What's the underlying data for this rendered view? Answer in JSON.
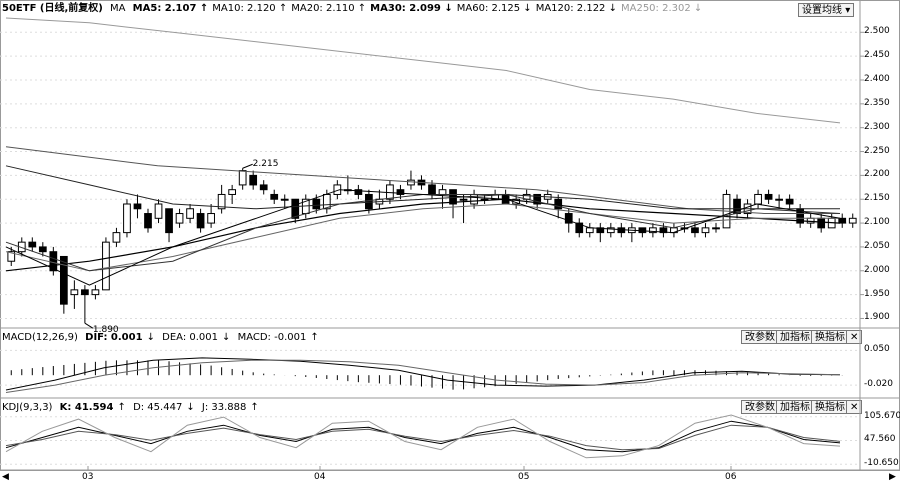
{
  "header": {
    "title": "50ETF (日线,前复权)",
    "ma_label": "MA",
    "ma": [
      {
        "name": "MA5",
        "value": "2.107",
        "arrow": "↑",
        "bold": true
      },
      {
        "name": "MA10",
        "value": "2.120",
        "arrow": "↑",
        "bold": false
      },
      {
        "name": "MA20",
        "value": "2.110",
        "arrow": "↑",
        "bold": false
      },
      {
        "name": "MA30",
        "value": "2.099",
        "arrow": "↓",
        "bold": true
      },
      {
        "name": "MA60",
        "value": "2.125",
        "arrow": "↓",
        "bold": false
      },
      {
        "name": "MA120",
        "value": "2.122",
        "arrow": "↓",
        "bold": false
      },
      {
        "name": "MA250",
        "value": "2.302",
        "arrow": "↓",
        "gray": true
      }
    ],
    "settings_button": "设置均线",
    "settings_arrow": "▾"
  },
  "macd": {
    "label": "MACD(12,26,9)",
    "dif": "DIF: 0.001",
    "dea": "DEA: 0.001",
    "macd": "MACD: -0.001",
    "dif_arrow": "↓",
    "dea_arrow": "↓",
    "macd_arrow": "↑",
    "buttons": [
      "改参数",
      "加指标",
      "换指标"
    ],
    "close": "✕"
  },
  "kdj": {
    "label": "KDJ(9,3,3)",
    "k": "K: 41.594",
    "d": "D: 45.447",
    "j": "J: 33.888",
    "k_arrow": "↑",
    "d_arrow": "↓",
    "j_arrow": "↑",
    "buttons": [
      "改参数",
      "加指标",
      "换指标"
    ],
    "close": "✕"
  },
  "annotations": {
    "high": "2.215",
    "low": "1.890"
  },
  "colors": {
    "up_candle": "#000000",
    "down_candle": "#000000",
    "background": "#ffffff",
    "grid": "#cccccc"
  },
  "chart_data": [
    {
      "type": "candlestick",
      "ylim": [
        1.88,
        2.53
      ],
      "y_ticks": [
        "2.500",
        "2.450",
        "2.400",
        "2.350",
        "2.300",
        "2.250",
        "2.200",
        "2.150",
        "2.100",
        "2.050",
        "2.000",
        "1.950",
        "1.900"
      ],
      "x_labels": [
        "03",
        "04",
        "05",
        "06"
      ],
      "candles": [
        [
          2.02,
          2.04,
          2.05,
          2.01
        ],
        [
          2.04,
          2.06,
          2.07,
          2.03
        ],
        [
          2.06,
          2.05,
          2.07,
          2.04
        ],
        [
          2.05,
          2.04,
          2.06,
          2.03
        ],
        [
          2.04,
          2.0,
          2.05,
          1.99
        ],
        [
          2.03,
          1.93,
          2.03,
          1.91
        ],
        [
          1.95,
          1.96,
          1.98,
          1.92
        ],
        [
          1.96,
          1.95,
          1.97,
          1.89
        ],
        [
          1.95,
          1.96,
          1.97,
          1.94
        ],
        [
          1.96,
          2.06,
          2.07,
          1.96
        ],
        [
          2.06,
          2.08,
          2.09,
          2.05
        ],
        [
          2.08,
          2.14,
          2.15,
          2.07
        ],
        [
          2.14,
          2.13,
          2.16,
          2.11
        ],
        [
          2.12,
          2.09,
          2.13,
          2.08
        ],
        [
          2.11,
          2.14,
          2.15,
          2.1
        ],
        [
          2.13,
          2.08,
          2.13,
          2.06
        ],
        [
          2.1,
          2.12,
          2.13,
          2.09
        ],
        [
          2.11,
          2.13,
          2.14,
          2.1
        ],
        [
          2.12,
          2.09,
          2.13,
          2.08
        ],
        [
          2.1,
          2.12,
          2.14,
          2.09
        ],
        [
          2.13,
          2.16,
          2.18,
          2.12
        ],
        [
          2.16,
          2.17,
          2.18,
          2.14
        ],
        [
          2.18,
          2.21,
          2.215,
          2.17
        ],
        [
          2.2,
          2.18,
          2.21,
          2.17
        ],
        [
          2.18,
          2.17,
          2.19,
          2.16
        ],
        [
          2.16,
          2.15,
          2.17,
          2.14
        ],
        [
          2.15,
          2.15,
          2.16,
          2.13
        ],
        [
          2.15,
          2.11,
          2.15,
          2.1
        ],
        [
          2.12,
          2.15,
          2.16,
          2.11
        ],
        [
          2.15,
          2.13,
          2.16,
          2.12
        ],
        [
          2.13,
          2.16,
          2.17,
          2.12
        ],
        [
          2.16,
          2.18,
          2.19,
          2.15
        ],
        [
          2.17,
          2.17,
          2.2,
          2.16
        ],
        [
          2.17,
          2.16,
          2.18,
          2.15
        ],
        [
          2.16,
          2.13,
          2.17,
          2.12
        ],
        [
          2.14,
          2.15,
          2.17,
          2.13
        ],
        [
          2.15,
          2.18,
          2.19,
          2.14
        ],
        [
          2.17,
          2.16,
          2.18,
          2.15
        ],
        [
          2.18,
          2.19,
          2.21,
          2.17
        ],
        [
          2.19,
          2.18,
          2.2,
          2.17
        ],
        [
          2.18,
          2.16,
          2.19,
          2.15
        ],
        [
          2.16,
          2.17,
          2.18,
          2.13
        ],
        [
          2.17,
          2.14,
          2.17,
          2.11
        ],
        [
          2.15,
          2.15,
          2.16,
          2.1
        ],
        [
          2.14,
          2.16,
          2.17,
          2.13
        ],
        [
          2.15,
          2.15,
          2.16,
          2.14
        ],
        [
          2.15,
          2.16,
          2.17,
          2.15
        ],
        [
          2.16,
          2.14,
          2.17,
          2.14
        ],
        [
          2.14,
          2.15,
          2.16,
          2.13
        ],
        [
          2.15,
          2.16,
          2.17,
          2.14
        ],
        [
          2.16,
          2.14,
          2.16,
          2.13
        ],
        [
          2.15,
          2.16,
          2.17,
          2.14
        ],
        [
          2.15,
          2.13,
          2.16,
          2.11
        ],
        [
          2.12,
          2.1,
          2.13,
          2.08
        ],
        [
          2.1,
          2.08,
          2.11,
          2.07
        ],
        [
          2.08,
          2.09,
          2.1,
          2.07
        ],
        [
          2.09,
          2.08,
          2.1,
          2.06
        ],
        [
          2.08,
          2.09,
          2.1,
          2.07
        ],
        [
          2.09,
          2.08,
          2.1,
          2.07
        ],
        [
          2.08,
          2.09,
          2.1,
          2.06
        ],
        [
          2.09,
          2.08,
          2.09,
          2.07
        ],
        [
          2.08,
          2.09,
          2.1,
          2.07
        ],
        [
          2.09,
          2.08,
          2.1,
          2.07
        ],
        [
          2.08,
          2.09,
          2.1,
          2.07
        ],
        [
          2.09,
          2.09,
          2.1,
          2.08
        ],
        [
          2.09,
          2.08,
          2.1,
          2.07
        ],
        [
          2.08,
          2.09,
          2.1,
          2.07
        ],
        [
          2.09,
          2.09,
          2.1,
          2.08
        ],
        [
          2.09,
          2.16,
          2.17,
          2.09
        ],
        [
          2.15,
          2.12,
          2.16,
          2.11
        ],
        [
          2.12,
          2.14,
          2.15,
          2.11
        ],
        [
          2.14,
          2.16,
          2.17,
          2.13
        ],
        [
          2.16,
          2.15,
          2.17,
          2.14
        ],
        [
          2.15,
          2.15,
          2.16,
          2.13
        ],
        [
          2.15,
          2.14,
          2.16,
          2.13
        ],
        [
          2.13,
          2.1,
          2.14,
          2.09
        ],
        [
          2.1,
          2.11,
          2.12,
          2.09
        ],
        [
          2.11,
          2.09,
          2.12,
          2.08
        ],
        [
          2.09,
          2.11,
          2.12,
          2.09
        ],
        [
          2.11,
          2.1,
          2.12,
          2.09
        ],
        [
          2.1,
          2.11,
          2.12,
          2.09
        ]
      ],
      "ma_lines": {
        "MA250": [
          2.53,
          2.52,
          2.5,
          2.48,
          2.46,
          2.44,
          2.42,
          2.38,
          2.36,
          2.33,
          2.31
        ],
        "MA120": [
          2.26,
          2.24,
          2.22,
          2.21,
          2.2,
          2.19,
          2.18,
          2.17,
          2.15,
          2.13,
          2.12,
          2.12
        ],
        "MA60": [
          2.22,
          2.18,
          2.14,
          2.13,
          2.14,
          2.15,
          2.16,
          2.15,
          2.13,
          2.13,
          2.13
        ],
        "MA30": [
          2.0,
          2.02,
          2.05,
          2.09,
          2.12,
          2.14,
          2.15,
          2.13,
          2.12,
          2.11,
          2.1
        ],
        "MA20": [
          2.04,
          2.0,
          2.03,
          2.07,
          2.11,
          2.13,
          2.14,
          2.12,
          2.1,
          2.11,
          2.11
        ],
        "MA10": [
          2.06,
          2.0,
          2.02,
          2.09,
          2.14,
          2.16,
          2.16,
          2.12,
          2.09,
          2.13,
          2.12
        ],
        "MA5": [
          2.05,
          1.97,
          2.05,
          2.11,
          2.17,
          2.16,
          2.15,
          2.09,
          2.08,
          2.14,
          2.11
        ]
      }
    },
    {
      "type": "line",
      "title": "MACD(12,26,9)",
      "ylim": [
        -0.04,
        0.065
      ],
      "y_ticks": [
        "0.050",
        "-0.020"
      ],
      "series": [
        {
          "name": "DIF",
          "values": [
            -0.03,
            -0.01,
            0.015,
            0.03,
            0.035,
            0.032,
            0.028,
            0.02,
            0.01,
            -0.01,
            -0.02,
            -0.022,
            -0.02,
            -0.01,
            0.005,
            0.008,
            0.002,
            0.001
          ]
        },
        {
          "name": "DEA",
          "values": [
            -0.035,
            -0.02,
            0.0,
            0.015,
            0.025,
            0.03,
            0.03,
            0.027,
            0.02,
            0.005,
            -0.01,
            -0.018,
            -0.02,
            -0.015,
            0.0,
            0.005,
            0.003,
            0.001
          ]
        }
      ]
    },
    {
      "type": "line",
      "title": "KDJ(9,3,3)",
      "ylim": [
        -15,
        115
      ],
      "y_ticks": [
        "105.670",
        "47.560",
        "-10.650"
      ],
      "series": [
        {
          "name": "K",
          "values": [
            30,
            55,
            80,
            60,
            40,
            70,
            85,
            60,
            45,
            75,
            80,
            55,
            40,
            65,
            80,
            55,
            25,
            20,
            30,
            70,
            95,
            80,
            50,
            41.594
          ]
        },
        {
          "name": "D",
          "values": [
            35,
            50,
            70,
            62,
            48,
            65,
            78,
            62,
            50,
            70,
            75,
            58,
            45,
            60,
            72,
            58,
            35,
            25,
            28,
            60,
            85,
            80,
            55,
            45.447
          ]
        },
        {
          "name": "J",
          "values": [
            20,
            70,
            100,
            55,
            20,
            85,
            105,
            55,
            30,
            90,
            95,
            45,
            25,
            80,
            100,
            45,
            5,
            10,
            35,
            90,
            110,
            80,
            40,
            33.888
          ]
        }
      ]
    }
  ]
}
